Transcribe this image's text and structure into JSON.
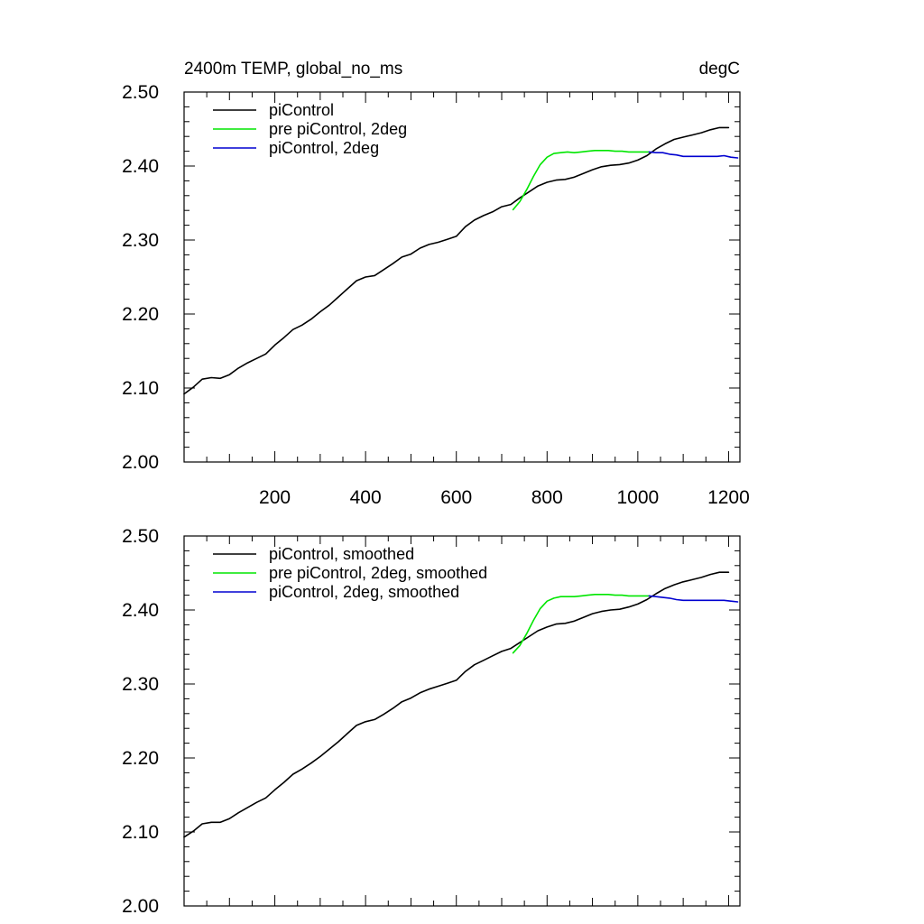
{
  "chart_data": [
    {
      "type": "line",
      "title_left": "2400m TEMP, global_no_ms",
      "title_right": "degC",
      "xlabel": "",
      "ylabel": "",
      "xlim": [
        0,
        1225
      ],
      "ylim": [
        2.0,
        2.5
      ],
      "xticks": [
        200,
        400,
        600,
        800,
        1000,
        1200
      ],
      "xtick_labels": [
        "200",
        "400",
        "600",
        "800",
        "1000",
        "1200"
      ],
      "yticks": [
        2.0,
        2.1,
        2.2,
        2.3,
        2.4,
        2.5
      ],
      "ytick_labels": [
        "2.00",
        "2.10",
        "2.20",
        "2.30",
        "2.40",
        "2.50"
      ],
      "legend_position": "top-left",
      "series": [
        {
          "name": "piControl",
          "color": "#000000",
          "x": [
            0,
            20,
            40,
            60,
            80,
            100,
            120,
            140,
            160,
            180,
            200,
            220,
            240,
            260,
            280,
            300,
            320,
            340,
            360,
            380,
            400,
            420,
            440,
            460,
            480,
            500,
            520,
            540,
            560,
            580,
            600,
            620,
            640,
            660,
            680,
            700,
            720,
            740,
            760,
            780,
            800,
            820,
            840,
            860,
            880,
            900,
            920,
            940,
            960,
            980,
            1000,
            1020,
            1040,
            1060,
            1080,
            1100,
            1120,
            1140,
            1160,
            1180,
            1200
          ],
          "y": [
            2.092,
            2.101,
            2.112,
            2.114,
            2.113,
            2.118,
            2.127,
            2.134,
            2.14,
            2.146,
            2.158,
            2.168,
            2.179,
            2.185,
            2.193,
            2.203,
            2.212,
            2.223,
            2.234,
            2.245,
            2.25,
            2.252,
            2.26,
            2.268,
            2.277,
            2.281,
            2.289,
            2.294,
            2.297,
            2.301,
            2.305,
            2.318,
            2.327,
            2.333,
            2.338,
            2.345,
            2.348,
            2.357,
            2.365,
            2.373,
            2.378,
            2.381,
            2.382,
            2.385,
            2.39,
            2.395,
            2.399,
            2.401,
            2.402,
            2.404,
            2.408,
            2.414,
            2.423,
            2.43,
            2.436,
            2.439,
            2.442,
            2.445,
            2.449,
            2.452,
            2.452
          ]
        },
        {
          "name": "pre piControl, 2deg",
          "color": "#00e600",
          "x": [
            725,
            740,
            755,
            770,
            785,
            800,
            815,
            830,
            845,
            860,
            875,
            890,
            905,
            920,
            935,
            950,
            965,
            980,
            995,
            1010,
            1025
          ],
          "y": [
            2.341,
            2.352,
            2.368,
            2.386,
            2.402,
            2.412,
            2.417,
            2.418,
            2.419,
            2.418,
            2.419,
            2.42,
            2.421,
            2.421,
            2.421,
            2.42,
            2.42,
            2.419,
            2.419,
            2.419,
            2.419
          ]
        },
        {
          "name": "piControl, 2deg",
          "color": "#0000d0",
          "x": [
            1025,
            1040,
            1055,
            1070,
            1085,
            1100,
            1115,
            1130,
            1145,
            1160,
            1175,
            1190,
            1205,
            1220
          ],
          "y": [
            2.419,
            2.418,
            2.418,
            2.416,
            2.415,
            2.413,
            2.413,
            2.413,
            2.413,
            2.413,
            2.413,
            2.414,
            2.412,
            2.411
          ]
        }
      ]
    },
    {
      "type": "line",
      "xlabel": "",
      "ylabel": "",
      "xlim": [
        0,
        1225
      ],
      "ylim": [
        2.0,
        2.5
      ],
      "yticks": [
        2.0,
        2.1,
        2.2,
        2.3,
        2.4,
        2.5
      ],
      "ytick_labels": [
        "2.00",
        "2.10",
        "2.20",
        "2.30",
        "2.40",
        "2.50"
      ],
      "legend_position": "top-left",
      "series": [
        {
          "name": "piControl, smoothed",
          "color": "#000000",
          "x": [
            0,
            20,
            40,
            60,
            80,
            100,
            120,
            140,
            160,
            180,
            200,
            220,
            240,
            260,
            280,
            300,
            320,
            340,
            360,
            380,
            400,
            420,
            440,
            460,
            480,
            500,
            520,
            540,
            560,
            580,
            600,
            620,
            640,
            660,
            680,
            700,
            720,
            740,
            760,
            780,
            800,
            820,
            840,
            860,
            880,
            900,
            920,
            940,
            960,
            980,
            1000,
            1020,
            1040,
            1060,
            1080,
            1100,
            1120,
            1140,
            1160,
            1180,
            1200
          ],
          "y": [
            2.093,
            2.101,
            2.111,
            2.113,
            2.113,
            2.118,
            2.126,
            2.133,
            2.14,
            2.146,
            2.157,
            2.167,
            2.178,
            2.185,
            2.193,
            2.202,
            2.212,
            2.222,
            2.233,
            2.244,
            2.249,
            2.252,
            2.259,
            2.267,
            2.276,
            2.281,
            2.288,
            2.293,
            2.297,
            2.301,
            2.305,
            2.317,
            2.326,
            2.332,
            2.338,
            2.344,
            2.348,
            2.356,
            2.364,
            2.372,
            2.377,
            2.381,
            2.382,
            2.385,
            2.39,
            2.395,
            2.398,
            2.4,
            2.401,
            2.404,
            2.408,
            2.414,
            2.422,
            2.429,
            2.434,
            2.438,
            2.441,
            2.444,
            2.448,
            2.451,
            2.451
          ]
        },
        {
          "name": "pre piControl, 2deg, smoothed",
          "color": "#00e600",
          "x": [
            725,
            740,
            755,
            770,
            785,
            800,
            815,
            830,
            845,
            860,
            875,
            890,
            905,
            920,
            935,
            950,
            965,
            980,
            995,
            1010,
            1025
          ],
          "y": [
            2.342,
            2.352,
            2.368,
            2.386,
            2.402,
            2.412,
            2.416,
            2.418,
            2.418,
            2.418,
            2.419,
            2.42,
            2.421,
            2.421,
            2.421,
            2.42,
            2.42,
            2.419,
            2.419,
            2.419,
            2.419
          ]
        },
        {
          "name": "piControl, 2deg, smoothed",
          "color": "#0000d0",
          "x": [
            1025,
            1040,
            1055,
            1070,
            1085,
            1100,
            1115,
            1130,
            1145,
            1160,
            1175,
            1190,
            1205,
            1220
          ],
          "y": [
            2.419,
            2.418,
            2.417,
            2.416,
            2.414,
            2.413,
            2.413,
            2.413,
            2.413,
            2.413,
            2.413,
            2.413,
            2.412,
            2.411
          ]
        }
      ]
    }
  ]
}
